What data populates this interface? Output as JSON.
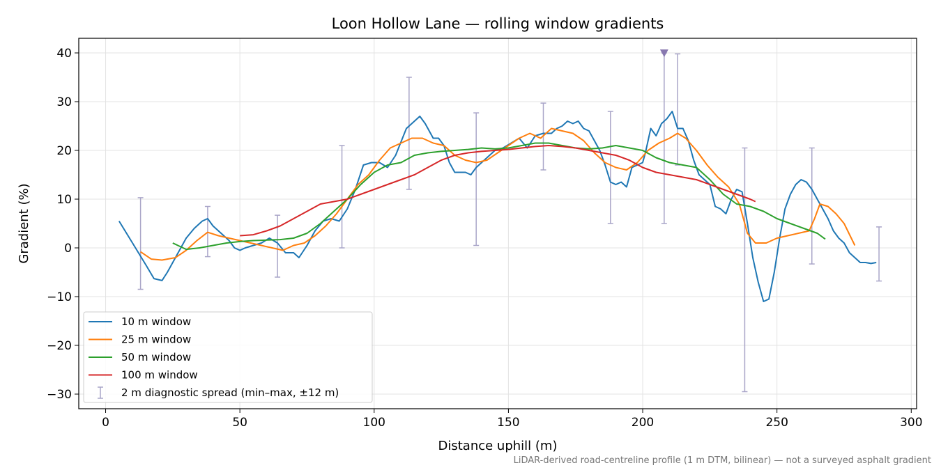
{
  "chart_data": {
    "type": "line",
    "title": "Loon Hollow Lane — rolling window gradients",
    "xlabel": "Distance uphill (m)",
    "ylabel": "Gradient (%)",
    "xlim": [
      -10,
      302
    ],
    "ylim": [
      -33,
      43
    ],
    "xticks": [
      0,
      50,
      100,
      150,
      200,
      250,
      300
    ],
    "yticks": [
      -30,
      -20,
      -10,
      0,
      10,
      20,
      30,
      40
    ],
    "xtick_labels": [
      "0",
      "50",
      "100",
      "150",
      "200",
      "250",
      "300"
    ],
    "ytick_labels": [
      "−30",
      "−20",
      "−10",
      "0",
      "10",
      "20",
      "30",
      "40"
    ],
    "grid": true,
    "legend_position": "lower left",
    "footnote": "LiDAR-derived road-centreline profile (1 m DTM, bilinear) — not a surveyed asphalt gradient",
    "series": [
      {
        "name": "10 m window",
        "color": "#1f77b4",
        "x": [
          5,
          10,
          15,
          18,
          21,
          23,
          26,
          30,
          33,
          36,
          38,
          40,
          43,
          46,
          48,
          50,
          52,
          55,
          58,
          61,
          64,
          67,
          70,
          72,
          75,
          78,
          81,
          84,
          87,
          90,
          93,
          96,
          99,
          102,
          105,
          108,
          112,
          115,
          117,
          119,
          122,
          124,
          126,
          128,
          130,
          132,
          134,
          136,
          138,
          140,
          142,
          145,
          148,
          151,
          154,
          157,
          160,
          163,
          166,
          168,
          170,
          172,
          174,
          176,
          178,
          180,
          182,
          184,
          186,
          188,
          190,
          192,
          194,
          196,
          198,
          200,
          201,
          203,
          205,
          207,
          209,
          211,
          213,
          215,
          217,
          219,
          221,
          223,
          225,
          227,
          229,
          231,
          233,
          235,
          237,
          239,
          241,
          243,
          245,
          247,
          249,
          251,
          253,
          255,
          257,
          259,
          261,
          263,
          265,
          267,
          269,
          271,
          273,
          275,
          277,
          279,
          281,
          283,
          285,
          287
        ],
        "y": [
          5.5,
          1.0,
          -3.5,
          -6.3,
          -6.7,
          -5.0,
          -2.0,
          2.0,
          4.0,
          5.5,
          6.0,
          4.5,
          3.0,
          1.5,
          0.0,
          -0.5,
          0.0,
          0.5,
          1.0,
          2.0,
          1.0,
          -1.0,
          -1.0,
          -2.0,
          0.5,
          3.5,
          5.5,
          6.0,
          5.5,
          8.0,
          12.0,
          17.0,
          17.5,
          17.5,
          16.5,
          19.0,
          24.5,
          26.0,
          27.0,
          25.5,
          22.5,
          22.5,
          21.0,
          17.5,
          15.5,
          15.5,
          15.5,
          15.0,
          16.5,
          17.5,
          18.5,
          20.0,
          20.5,
          21.5,
          22.5,
          20.5,
          23.0,
          23.5,
          23.5,
          24.5,
          25.0,
          26.0,
          25.5,
          26.0,
          24.5,
          24.0,
          22.0,
          20.0,
          17.0,
          13.5,
          13.0,
          13.5,
          12.5,
          16.5,
          17.0,
          17.5,
          19.5,
          24.5,
          23.0,
          25.5,
          26.5,
          28.0,
          24.5,
          24.5,
          22.0,
          18.0,
          15.0,
          14.0,
          13.0,
          8.5,
          8.0,
          7.0,
          10.0,
          12.0,
          11.5,
          5.0,
          -2.0,
          -7.0,
          -11.0,
          -10.5,
          -5.0,
          2.0,
          8.0,
          11.0,
          13.0,
          14.0,
          13.5,
          12.0,
          10.0,
          8.0,
          6.0,
          3.5,
          2.0,
          1.0,
          -1.0,
          -2.0,
          -3.0,
          -3.0,
          -3.2,
          -3.0
        ]
      },
      {
        "name": "25 m window",
        "color": "#ff7f0e",
        "x": [
          13,
          17,
          21,
          26,
          30,
          34,
          38,
          42,
          46,
          50,
          54,
          58,
          62,
          66,
          70,
          74,
          78,
          82,
          86,
          90,
          94,
          98,
          102,
          106,
          110,
          114,
          118,
          122,
          126,
          130,
          134,
          138,
          142,
          146,
          150,
          154,
          158,
          162,
          166,
          170,
          174,
          178,
          182,
          186,
          190,
          194,
          198,
          202,
          206,
          210,
          213,
          216,
          220,
          224,
          228,
          232,
          236,
          239,
          242,
          246,
          250,
          254,
          258,
          262,
          264,
          266,
          269,
          272,
          275,
          279
        ],
        "y": [
          -0.8,
          -2.3,
          -2.5,
          -2.0,
          -0.5,
          1.5,
          3.2,
          2.5,
          2.0,
          1.5,
          1.0,
          0.5,
          0.0,
          -0.5,
          0.5,
          1.0,
          2.5,
          4.5,
          7.0,
          10.0,
          13.0,
          15.0,
          18.0,
          20.5,
          21.5,
          22.5,
          22.5,
          21.5,
          21.0,
          19.0,
          18.0,
          17.5,
          18.0,
          19.5,
          21.0,
          22.5,
          23.5,
          22.5,
          24.5,
          24.0,
          23.5,
          22.0,
          19.5,
          17.5,
          16.5,
          16.0,
          17.5,
          20.0,
          21.5,
          22.5,
          23.5,
          22.5,
          20.0,
          17.0,
          14.5,
          12.5,
          9.0,
          3.0,
          1.0,
          1.0,
          2.0,
          2.5,
          3.0,
          3.5,
          6.0,
          9.0,
          8.5,
          7.0,
          5.0,
          0.5
        ]
      },
      {
        "name": "50 m window",
        "color": "#2ca02c",
        "x": [
          25,
          30,
          35,
          40,
          45,
          50,
          55,
          60,
          65,
          70,
          75,
          80,
          85,
          90,
          95,
          100,
          105,
          110,
          115,
          120,
          125,
          130,
          135,
          140,
          145,
          150,
          155,
          160,
          165,
          170,
          175,
          180,
          185,
          190,
          195,
          200,
          205,
          210,
          215,
          220,
          225,
          230,
          235,
          240,
          245,
          250,
          255,
          260,
          265,
          268
        ],
        "y": [
          1.0,
          -0.3,
          0.0,
          0.5,
          1.0,
          1.3,
          1.5,
          1.6,
          1.7,
          2.0,
          3.0,
          5.0,
          7.5,
          10.0,
          13.0,
          15.5,
          17.0,
          17.5,
          19.0,
          19.5,
          19.8,
          20.0,
          20.2,
          20.5,
          20.3,
          20.5,
          21.0,
          21.5,
          21.5,
          21.0,
          20.5,
          20.3,
          20.5,
          21.0,
          20.5,
          20.0,
          18.5,
          17.5,
          17.0,
          16.5,
          14.0,
          11.0,
          9.0,
          8.5,
          7.5,
          6.0,
          5.0,
          4.0,
          3.0,
          1.8
        ]
      },
      {
        "name": "100 m window",
        "color": "#d62728",
        "x": [
          50,
          55,
          60,
          65,
          70,
          75,
          80,
          85,
          90,
          95,
          100,
          105,
          110,
          115,
          120,
          125,
          130,
          135,
          140,
          145,
          150,
          155,
          160,
          165,
          170,
          175,
          180,
          185,
          190,
          195,
          200,
          205,
          210,
          215,
          220,
          225,
          230,
          235,
          240,
          242
        ],
        "y": [
          2.5,
          2.7,
          3.5,
          4.5,
          6.0,
          7.5,
          9.0,
          9.5,
          10.0,
          11.0,
          12.0,
          13.0,
          14.0,
          15.0,
          16.5,
          18.0,
          19.0,
          19.5,
          19.8,
          20.0,
          20.2,
          20.5,
          20.8,
          21.0,
          20.8,
          20.5,
          20.0,
          19.5,
          19.0,
          18.0,
          16.5,
          15.5,
          15.0,
          14.5,
          14.0,
          13.0,
          12.0,
          11.0,
          10.0,
          9.5
        ]
      }
    ],
    "diagnostic_spread": {
      "name": "2 m diagnostic spread (min–max, ±12 m)",
      "color": "#a9a5c8",
      "x": [
        13,
        38,
        64,
        88,
        113,
        138,
        163,
        188,
        208,
        213,
        238,
        263,
        288
      ],
      "low": [
        -8.5,
        -1.8,
        -6.0,
        0.0,
        12.0,
        0.5,
        16.0,
        5.0,
        5.0,
        17.0,
        -29.5,
        -3.3,
        -6.8
      ],
      "high": [
        10.3,
        8.5,
        6.7,
        21.0,
        35.0,
        27.7,
        29.7,
        28.0,
        40.0,
        39.8,
        20.5,
        20.5,
        4.3
      ]
    },
    "clip_marker": {
      "x": 208,
      "y": 40.0,
      "color": "#8878b0"
    }
  }
}
